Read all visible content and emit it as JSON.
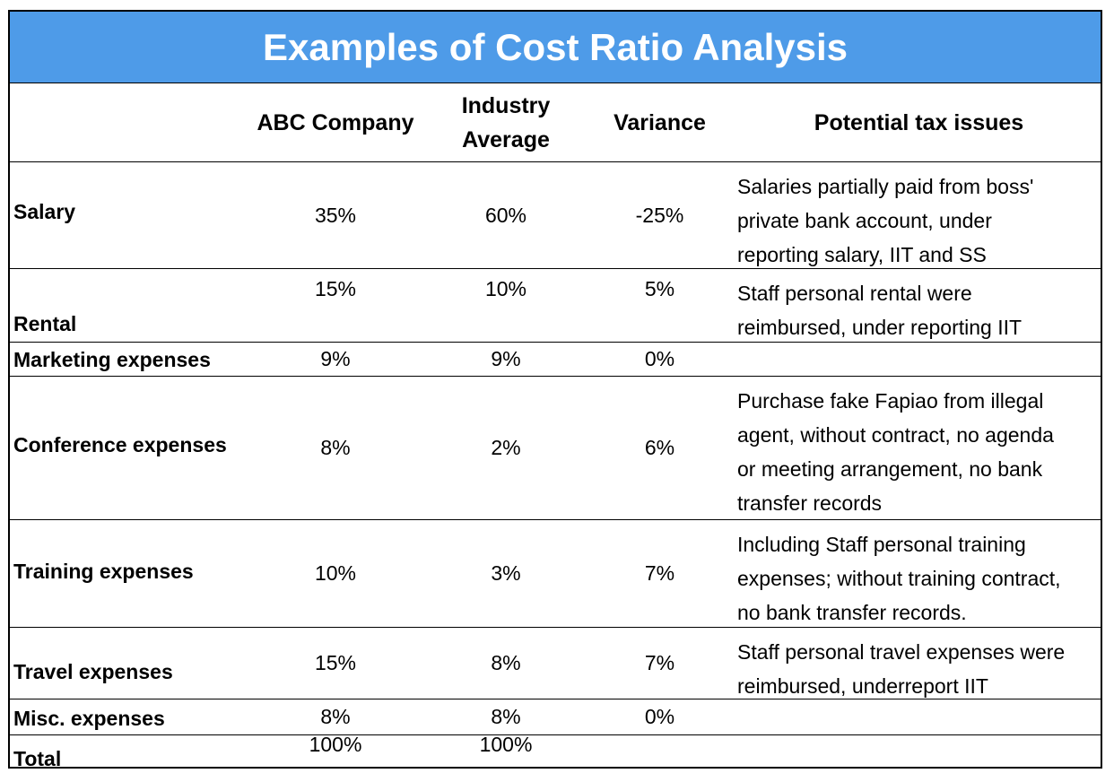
{
  "title": "Examples of Cost Ratio Analysis",
  "headers": {
    "abc": "ABC Company",
    "industry_line1": "Industry",
    "industry_line2": "Average",
    "variance": "Variance",
    "issues": "Potential tax issues"
  },
  "rows": [
    {
      "label": "Salary",
      "abc": "35%",
      "industry": "60%",
      "variance": "-25%",
      "issues": [
        "Salaries partially paid from boss'",
        "private bank account, under",
        "reporting salary, IIT and SS"
      ]
    },
    {
      "label": "Rental",
      "abc": "15%",
      "industry": "10%",
      "variance": "5%",
      "issues": [
        "Staff personal rental were",
        "reimbursed, under reporting IIT"
      ]
    },
    {
      "label": "Marketing expenses",
      "abc": "9%",
      "industry": "9%",
      "variance": "0%",
      "issues": []
    },
    {
      "label": "Conference expenses",
      "abc": "8%",
      "industry": "2%",
      "variance": "6%",
      "issues": [
        "Purchase fake Fapiao from illegal",
        "agent, without contract, no agenda",
        "or meeting arrangement, no bank",
        "transfer records"
      ]
    },
    {
      "label": "Training expenses",
      "abc": "10%",
      "industry": "3%",
      "variance": "7%",
      "issues": [
        "Including Staff personal training",
        "expenses; without training contract,",
        "no bank transfer records."
      ]
    },
    {
      "label": "Travel expenses",
      "abc": "15%",
      "industry": "8%",
      "variance": "7%",
      "issues": [
        "Staff personal travel expenses were",
        "reimbursed, underreport IIT"
      ]
    },
    {
      "label": "Misc. expenses",
      "abc": "8%",
      "industry": "8%",
      "variance": "0%",
      "issues": []
    },
    {
      "label": "Total",
      "abc": "100%",
      "industry": "100%",
      "variance": "",
      "issues": []
    }
  ]
}
